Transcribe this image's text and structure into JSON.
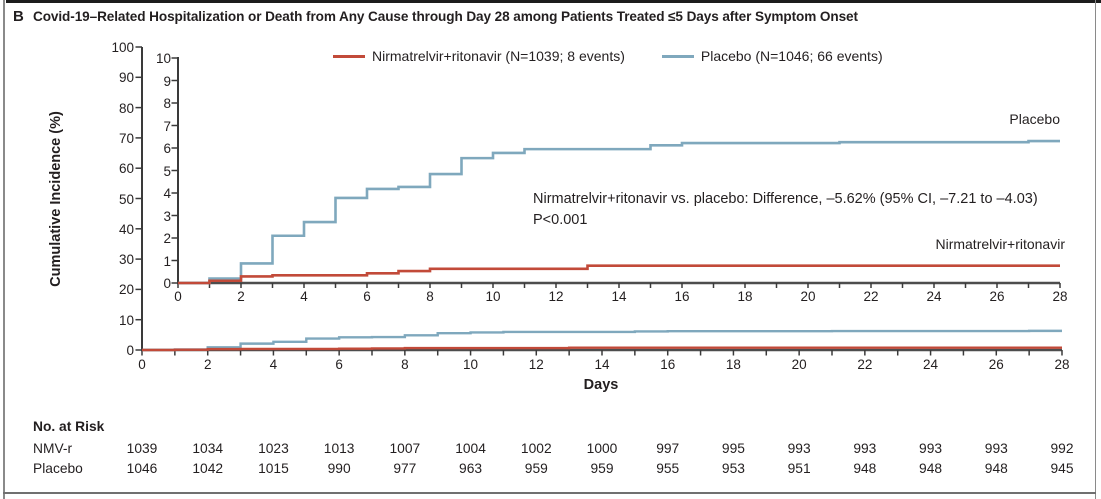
{
  "panel": {
    "label": "B",
    "title": "Covid-19–Related Hospitalization or Death from Any Cause through Day 28 among Patients Treated ≤5 Days after Symptom Onset"
  },
  "colors": {
    "treatment": "#c24a39",
    "placebo": "#7fa8bd",
    "axis": "#3a3a3a",
    "text": "#231f20"
  },
  "legend": {
    "items": [
      {
        "key": "treatment",
        "label": "Nirmatrelvir+ritonavir (N=1039; 8 events)",
        "color": "#c24a39"
      },
      {
        "key": "placebo",
        "label": "Placebo (N=1046; 66 events)",
        "color": "#7fa8bd"
      }
    ]
  },
  "annotation": {
    "line1": "Nirmatrelvir+ritonavir vs. placebo: Difference, –5.62% (95% CI, –7.21 to –4.03)",
    "line2": "P<0.001"
  },
  "curve_labels": {
    "placebo": "Placebo",
    "treatment": "Nirmatrelvir+ritonavir"
  },
  "axes": {
    "main": {
      "ylabel": "Cumulative Incidence (%)",
      "xlabel": "Days",
      "yticks": [
        100,
        90,
        80,
        70,
        60,
        50,
        40,
        30,
        20,
        10,
        0
      ],
      "xticks": [
        0,
        2,
        4,
        6,
        8,
        10,
        12,
        14,
        16,
        18,
        20,
        22,
        24,
        26,
        28
      ]
    },
    "inset": {
      "yticks": [
        10,
        9,
        8,
        7,
        6,
        5,
        4,
        3,
        2,
        1,
        0
      ],
      "xticks": [
        0,
        2,
        4,
        6,
        8,
        10,
        12,
        14,
        16,
        18,
        20,
        22,
        24,
        26,
        28
      ]
    }
  },
  "at_risk": {
    "header": "No. at Risk",
    "rows": [
      {
        "label": "NMV-r",
        "values": [
          1039,
          1034,
          1023,
          1013,
          1007,
          1004,
          1002,
          1000,
          997,
          995,
          993,
          993,
          993,
          993,
          992
        ]
      },
      {
        "label": "Placebo",
        "values": [
          1046,
          1042,
          1015,
          990,
          977,
          963,
          959,
          959,
          955,
          953,
          951,
          948,
          948,
          948,
          945
        ]
      }
    ]
  },
  "chart_data": {
    "type": "line",
    "subtype": "kaplan-meier-step",
    "title": "Covid-19–Related Hospitalization or Death from Any Cause through Day 28 among Patients Treated ≤5 Days after Symptom Onset",
    "xlabel": "Days",
    "ylabel": "Cumulative Incidence (%)",
    "xlim": [
      0,
      28
    ],
    "ylim_main": [
      0,
      100
    ],
    "ylim_inset": [
      0,
      10
    ],
    "grid": false,
    "legend_position": "top-center",
    "annotation": "Nirmatrelvir+ritonavir vs. placebo: Difference, –5.62% (95% CI, –7.21 to –4.03), P<0.001",
    "series": [
      {
        "name": "Placebo (N=1046; 66 events)",
        "color": "#7fa8bd",
        "step": true,
        "points": [
          [
            0,
            0
          ],
          [
            1,
            0.2
          ],
          [
            2,
            0.87
          ],
          [
            3,
            2.1
          ],
          [
            4,
            2.71
          ],
          [
            5,
            3.78
          ],
          [
            6,
            4.18
          ],
          [
            7,
            4.27
          ],
          [
            8,
            4.84
          ],
          [
            9,
            5.55
          ],
          [
            10,
            5.78
          ],
          [
            11,
            5.95
          ],
          [
            15,
            6.12
          ],
          [
            16,
            6.22
          ],
          [
            21,
            6.26
          ],
          [
            27,
            6.31
          ],
          [
            28,
            6.31
          ]
        ]
      },
      {
        "name": "Nirmatrelvir+ritonavir (N=1039; 8 events)",
        "color": "#c24a39",
        "step": true,
        "points": [
          [
            0,
            0
          ],
          [
            1,
            0.1
          ],
          [
            2,
            0.29
          ],
          [
            3,
            0.34
          ],
          [
            6,
            0.43
          ],
          [
            7,
            0.53
          ],
          [
            8,
            0.63
          ],
          [
            13,
            0.77
          ],
          [
            28,
            0.77
          ]
        ]
      }
    ]
  }
}
